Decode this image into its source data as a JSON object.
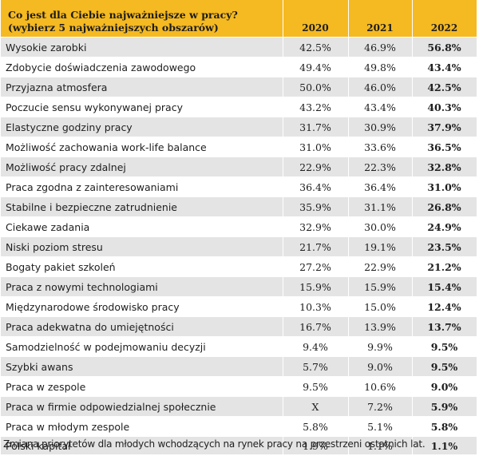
{
  "header": {
    "question_line1": "Co jest dla Ciebie najważniejsze w pracy?",
    "question_line2": "(wybierz 5 najważniejszych obszarów)",
    "years": [
      "2020",
      "2021",
      "2022"
    ]
  },
  "rows": [
    {
      "label": "Wysokie zarobki",
      "v2020": "42.5%",
      "v2021": "46.9%",
      "v2022": "56.8%"
    },
    {
      "label": "Zdobycie doświadczenia zawodowego",
      "v2020": "49.4%",
      "v2021": "49.8%",
      "v2022": "43.4%"
    },
    {
      "label": "Przyjazna atmosfera",
      "v2020": "50.0%",
      "v2021": "46.0%",
      "v2022": "42.5%"
    },
    {
      "label": "Poczucie sensu wykonywanej pracy",
      "v2020": "43.2%",
      "v2021": "43.4%",
      "v2022": "40.3%"
    },
    {
      "label": "Elastyczne godziny pracy",
      "v2020": "31.7%",
      "v2021": "30.9%",
      "v2022": "37.9%"
    },
    {
      "label": "Możliwość zachowania work-life balance",
      "v2020": "31.0%",
      "v2021": "33.6%",
      "v2022": "36.5%"
    },
    {
      "label": " Możliwość pracy zdalnej",
      "v2020": "22.9%",
      "v2021": "22.3%",
      "v2022": "32.8%"
    },
    {
      "label": "Praca zgodna z zainteresowaniami",
      "v2020": "36.4%",
      "v2021": "36.4%",
      "v2022": "31.0%"
    },
    {
      "label": "Stabilne i bezpieczne zatrudnienie",
      "v2020": "35.9%",
      "v2021": "31.1%",
      "v2022": "26.8%"
    },
    {
      "label": "Ciekawe zadania",
      "v2020": "32.9%",
      "v2021": "30.0%",
      "v2022": "24.9%"
    },
    {
      "label": "Niski poziom stresu",
      "v2020": "21.7%",
      "v2021": "19.1%",
      "v2022": "23.5%"
    },
    {
      "label": "Bogaty pakiet szkoleń",
      "v2020": "27.2%",
      "v2021": "22.9%",
      "v2022": "21.2%"
    },
    {
      "label": "Praca z nowymi technologiami",
      "v2020": "15.9%",
      "v2021": "15.9%",
      "v2022": "15.4%"
    },
    {
      "label": "Międzynarodowe środowisko pracy",
      "v2020": "10.3%",
      "v2021": "15.0%",
      "v2022": "12.4%"
    },
    {
      "label": "Praca adekwatna do umiejętności",
      "v2020": "16.7%",
      "v2021": "13.9%",
      "v2022": "13.7%"
    },
    {
      "label": "Samodzielność w podejmowaniu decyzji",
      "v2020": "9.4%",
      "v2021": "9.9%",
      "v2022": "9.5%"
    },
    {
      "label": "Szybki awans",
      "v2020": "5.7%",
      "v2021": "9.0%",
      "v2022": "9.5%"
    },
    {
      "label": "Praca w zespole",
      "v2020": "9.5%",
      "v2021": "10.6%",
      "v2022": "9.0%"
    },
    {
      "label": "Praca w firmie odpowiedzialnej społecznie",
      "v2020": "X",
      "v2021": "7.2%",
      "v2022": "5.9%"
    },
    {
      "label": "Praca w młodym zespole",
      "v2020": "5.8%",
      "v2021": "5.1%",
      "v2022": "5.8%"
    },
    {
      "label": "Polski kapitał",
      "v2020": "1.9%",
      "v2021": "1.1%",
      "v2022": "1.1%"
    }
  ],
  "caption": "Zmiana priorytetów dla młodych wchodzących na rynek pracy na przestrzeni ostatnich lat.",
  "colors": {
    "header_bg": "#f5b921",
    "row_shaded": "#e4e4e4",
    "row_plain": "#ffffff"
  }
}
